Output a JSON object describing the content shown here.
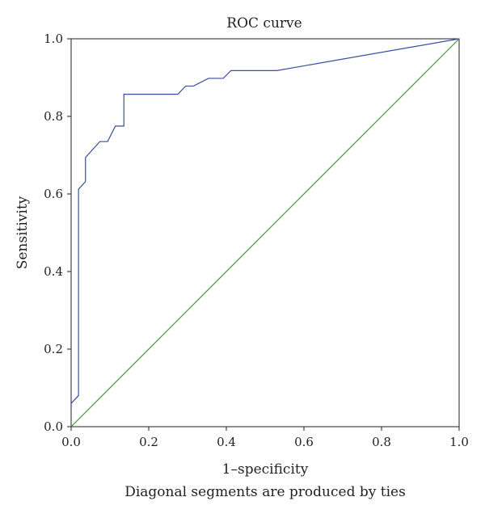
{
  "chart_data": {
    "type": "line",
    "title": "ROC curve",
    "xlabel": "1–specificity",
    "ylabel": "Sensitivity",
    "footnote": "Diagonal segments are produced by ties",
    "xlim": [
      0,
      1
    ],
    "ylim": [
      0,
      1
    ],
    "x_ticks": [
      "0.0",
      "0.2",
      "0.4",
      "0.6",
      "0.8",
      "1.0"
    ],
    "y_ticks": [
      "0.0",
      "0.2",
      "0.4",
      "0.6",
      "0.8",
      "1.0"
    ],
    "grid": false,
    "series": [
      {
        "color": "#3a4ea0",
        "points": [
          [
            0.0,
            0.06
          ],
          [
            0.019,
            0.08
          ],
          [
            0.019,
            0.612
          ],
          [
            0.037,
            0.632
          ],
          [
            0.037,
            0.694
          ],
          [
            0.074,
            0.735
          ],
          [
            0.094,
            0.735
          ],
          [
            0.114,
            0.775
          ],
          [
            0.136,
            0.775
          ],
          [
            0.136,
            0.857
          ],
          [
            0.275,
            0.857
          ],
          [
            0.295,
            0.878
          ],
          [
            0.315,
            0.878
          ],
          [
            0.354,
            0.898
          ],
          [
            0.392,
            0.898
          ],
          [
            0.412,
            0.918
          ],
          [
            0.53,
            0.918
          ],
          [
            1.0,
            1.0
          ]
        ]
      },
      {
        "color": "#33a02c",
        "points": [
          [
            0,
            0
          ],
          [
            1,
            1
          ]
        ]
      }
    ]
  }
}
